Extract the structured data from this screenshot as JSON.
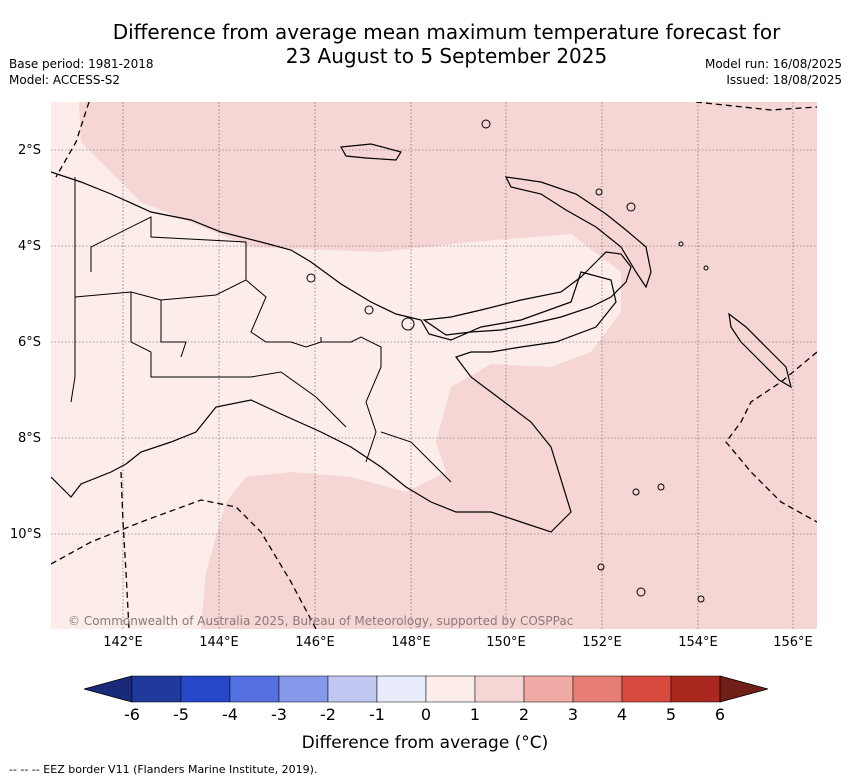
{
  "header": {
    "title_line1": "Difference from average mean maximum temperature forecast for",
    "title_line2": "23 August to 5 September 2025",
    "base_period": "Base period: 1981-2018",
    "model": "Model: ACCESS-S2",
    "model_run": "Model run: 16/08/2025",
    "issued": "Issued: 18/08/2025"
  },
  "map": {
    "region": "Papua New Guinea",
    "lat_labels": [
      "2°S",
      "4°S",
      "6°S",
      "8°S",
      "10°S"
    ],
    "lon_labels": [
      "142°E",
      "144°E",
      "146°E",
      "148°E",
      "150°E",
      "152°E",
      "154°E",
      "156°E"
    ],
    "copyright": "© Commonwealth of Australia 2025, Bureau of Meteorology, supported by COSPPac",
    "colors": {
      "warm_1_2": "#f5d6d4",
      "warm_0_1": "#fcecea",
      "coast": "#000000"
    }
  },
  "legend": {
    "labels": [
      "-6",
      "-5",
      "-4",
      "-3",
      "-2",
      "-1",
      "0",
      "1",
      "2",
      "3",
      "4",
      "5",
      "6"
    ],
    "colors": [
      "#1f3a9a",
      "#2647c8",
      "#5570e0",
      "#8598ea",
      "#c0c8f2",
      "#e8ebf9",
      "#fcecea",
      "#f5d6d4",
      "#efaaa5",
      "#e67e76",
      "#d84a3e",
      "#ab2820"
    ],
    "under_color": "#1a2a7a",
    "over_color": "#701e18",
    "title": "Difference from average (°C)"
  },
  "footer": {
    "eez": "-- -- -- EEZ border V11 (Flanders Marine Institute, 2019)."
  }
}
